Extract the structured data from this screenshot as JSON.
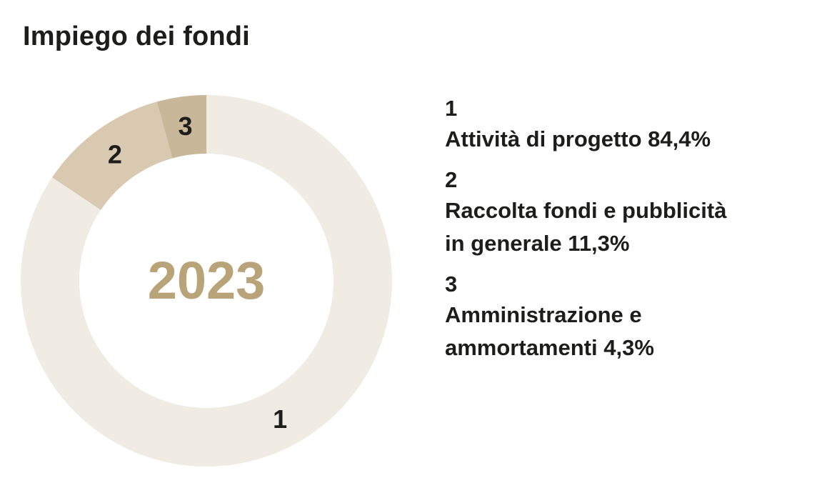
{
  "chart_data": {
    "type": "pie",
    "title": "Impiego dei fondi",
    "center_label": "2023",
    "slices": [
      {
        "id": "1",
        "label": "Attività di progetto",
        "value": 84.4,
        "value_label": "84,4%",
        "color": "#f0ebe3"
      },
      {
        "id": "2",
        "label": "Raccolta fondi e pubblicità in generale",
        "value": 11.3,
        "value_label": "11,3%",
        "color": "#d8c9b0"
      },
      {
        "id": "3",
        "label": "Amministrazione e ammortamenti",
        "value": 4.3,
        "value_label": "4,3%",
        "color": "#c8b799"
      }
    ],
    "center_label_color": "#b9a47a"
  },
  "legend": [
    {
      "num": "1",
      "text": "Attività di progetto 84,4%"
    },
    {
      "num": "2",
      "text": "Raccolta fondi e pubblicità\nin generale 11,3%"
    },
    {
      "num": "3",
      "text": "Amministrazione e\nammortamenti 4,3%"
    }
  ]
}
